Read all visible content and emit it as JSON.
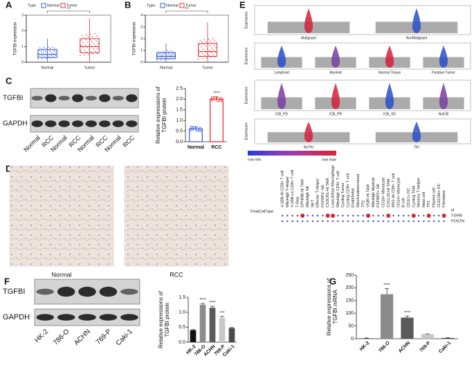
{
  "panel_labels": [
    "A",
    "B",
    "C",
    "D",
    "E",
    "F",
    "G"
  ],
  "chart_data": [
    {
      "type": "box",
      "legend_title": "Type",
      "ylabel": [
        "TGFBI expression"
      ],
      "categories": [
        "Normal",
        "Tumor"
      ],
      "colors": [
        "#3a5fcd",
        "#e0303a"
      ],
      "stats": [
        [
          0,
          0.3,
          0.5,
          0.8,
          1.5
        ],
        [
          0,
          0.6,
          1.0,
          1.5,
          2.8
        ]
      ],
      "ylim": [
        0,
        3
      ],
      "yticks": [
        0,
        1,
        2,
        3
      ],
      "significance": "***"
    },
    {
      "type": "box",
      "legend_title": "Type",
      "ylabel": [
        "TGFBI expression"
      ],
      "categories": [
        "Normal",
        "Tumor"
      ],
      "colors": [
        "#3a5fcd",
        "#e0303a"
      ],
      "stats": [
        [
          0,
          0.3,
          0.5,
          0.8,
          1.6
        ],
        [
          0,
          0.5,
          0.9,
          1.6,
          3.4
        ]
      ],
      "ylim": [
        0,
        4
      ],
      "yticks": [
        0,
        1,
        2,
        3,
        4
      ],
      "significance": "***"
    },
    {
      "type": "bar",
      "style": "outline",
      "ylabel": [
        "Relative expressions of",
        "TGFBI protein"
      ],
      "categories": [
        "Normal",
        "RCC"
      ],
      "values": [
        0.6,
        2.0
      ],
      "errors": [
        0.1,
        0.12
      ],
      "colors": [
        "#2f4fd0",
        "#e02020"
      ],
      "annotations": [
        null,
        "****"
      ],
      "ylim": [
        0,
        2.5
      ],
      "yticks": [
        {
          "value": 0,
          "label": "0.0"
        },
        {
          "value": 0.5,
          "label": "0.5"
        },
        {
          "value": 1,
          "label": "1.0"
        },
        {
          "value": 1.5,
          "label": "1.5"
        },
        {
          "value": 2,
          "label": "2.0"
        },
        {
          "value": 2.5,
          "label": "2.5"
        }
      ],
      "rotate_labels": false
    },
    {
      "type": "bar",
      "style": "solid",
      "ylabel": [
        "Relative expressions of",
        "TGFBI protein"
      ],
      "categories": [
        "HK-2",
        "786-O",
        "ACHN",
        "769-P",
        "Caki-1"
      ],
      "values": [
        0.4,
        1.25,
        1.15,
        0.8,
        0.47
      ],
      "errors": [
        0.02,
        0.04,
        0.05,
        0.06,
        0.02
      ],
      "colors": [
        "#111111",
        "#8c8c8c",
        "#5a5a5a",
        "#c8c8c8",
        "#4a4a4a"
      ],
      "annotations": [
        null,
        "****",
        "****",
        "***",
        null
      ],
      "ylim": [
        0,
        1.5
      ],
      "yticks": [
        {
          "value": 0,
          "label": "0.0"
        },
        {
          "value": 0.5,
          "label": "0.5"
        },
        {
          "value": 1,
          "label": "1.0"
        },
        {
          "value": 1.5,
          "label": "1.5"
        }
      ],
      "rotate_labels": true
    },
    {
      "type": "bar",
      "style": "solid",
      "ylabel": [
        "Relative  expressions of",
        "TGFBI mRNA"
      ],
      "categories": [
        "HK-2",
        "786-O",
        "ACHN",
        "769-P",
        "Caki-1"
      ],
      "values": [
        1,
        175,
        83,
        18,
        3
      ],
      "errors": [
        2,
        22,
        6,
        1,
        1
      ],
      "colors": [
        "#111111",
        "#8c8c8c",
        "#5a5a5a",
        "#c8c8c8",
        "#4a4a4a"
      ],
      "annotations": [
        null,
        "****",
        "****",
        null,
        null
      ],
      "ylim": [
        0,
        250
      ],
      "yticks": [
        0,
        50,
        100,
        150,
        200,
        250
      ],
      "rotate_labels": true
    }
  ],
  "blots": [
    {
      "bands": [
        "TGFBI",
        "GAPDH"
      ],
      "lanes": [
        "Normal",
        "RCC",
        "Normal",
        "RCC",
        "Normal",
        "RCC",
        "Normal",
        "RCC"
      ]
    },
    {
      "bands": [
        "TGFBI",
        "GAPDH"
      ],
      "lanes": [
        "HK-2",
        "786-O",
        "ACHN",
        "769-P",
        "Caki-1"
      ]
    }
  ],
  "histology": [
    "Normal",
    "RCC"
  ],
  "violins": {
    "ylabel": "Expression",
    "rows": [
      [
        "Malignant",
        "NonMalignant"
      ],
      [
        "Lymphoid",
        "Myeloid",
        "Normal Tissue",
        "Putative Tumor"
      ],
      [
        "ICB_PD",
        "ICB_PR",
        "ICB_SD",
        "NoICB"
      ],
      [
        "NoTKI",
        "TKI"
      ]
    ],
    "scale": [
      "row min",
      "row max"
    ]
  },
  "dotplot": {
    "row_title": "FinalCellType",
    "id": "id",
    "genes": [
      "TGFBI",
      "POSTN"
    ],
    "cell_types": [
      "4-1BB-Hi CD8+ T cell",
      "MitoHigh T-Helper",
      "4-1BB-Lo CD8+ T cell",
      "T-Reg",
      "GPNMB-Hi TAM",
      "MitoHigh NK",
      "NKT",
      "Effector T-Helper",
      "FGFBP2- NK",
      "CX3CR1-Hi TAM",
      "LowLibSize Macrophage",
      "MitoHigh CD8+ T cell",
      "Cycling Tumor",
      "Cycling CD8+ T cell",
      "Endothelial",
      "Misc/Undetermined",
      "TP2",
      "VSIR-Hi TAM",
      "MitoHigh Myeloid",
      "FGFBP2+ NK",
      "CD16+ Monocyte",
      "CXCL10-Hi TAM",
      "MX1-Hi CD8+ T cell",
      "CD14+ Monocyte",
      "B cell",
      "CD1C+ DC",
      "Cycling TAM",
      "Memory T-Helper",
      "Mast cell",
      "TP1",
      "Plasma cell",
      "CLEC9A+ DC",
      "Fibroblast"
    ]
  }
}
